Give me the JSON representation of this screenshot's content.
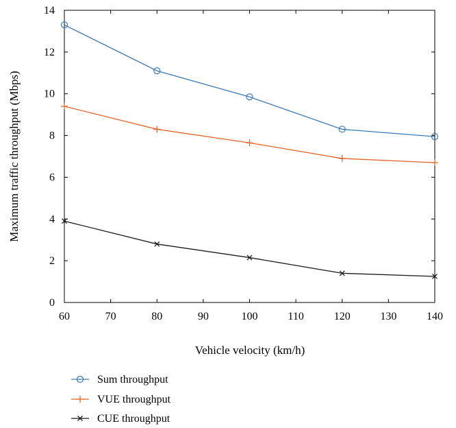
{
  "chart_data": {
    "type": "line",
    "title": "",
    "xlabel": "Vehicle velocity (km/h)",
    "ylabel": "Maximum traffic throughput (Mbps)",
    "xlim": [
      60,
      140
    ],
    "ylim": [
      0,
      14
    ],
    "xticks": [
      60,
      70,
      80,
      90,
      100,
      110,
      120,
      130,
      140
    ],
    "yticks": [
      0,
      2,
      4,
      6,
      8,
      10,
      12,
      14
    ],
    "grid": false,
    "legend_position": "bottom-left, below plot",
    "x": [
      60,
      80,
      100,
      120,
      140
    ],
    "series": [
      {
        "name": "Sum throughput",
        "color": "#3a78b5",
        "marker": "circle",
        "values": [
          13.3,
          11.1,
          9.85,
          8.3,
          7.95
        ]
      },
      {
        "name": "VUE throughput",
        "color": "#e0642a",
        "marker": "plus",
        "values": [
          9.4,
          8.3,
          7.65,
          6.9,
          6.7
        ]
      },
      {
        "name": "CUE throughput",
        "color": "#1a1a1a",
        "marker": "x",
        "values": [
          3.9,
          2.8,
          2.15,
          1.4,
          1.25
        ]
      }
    ]
  }
}
